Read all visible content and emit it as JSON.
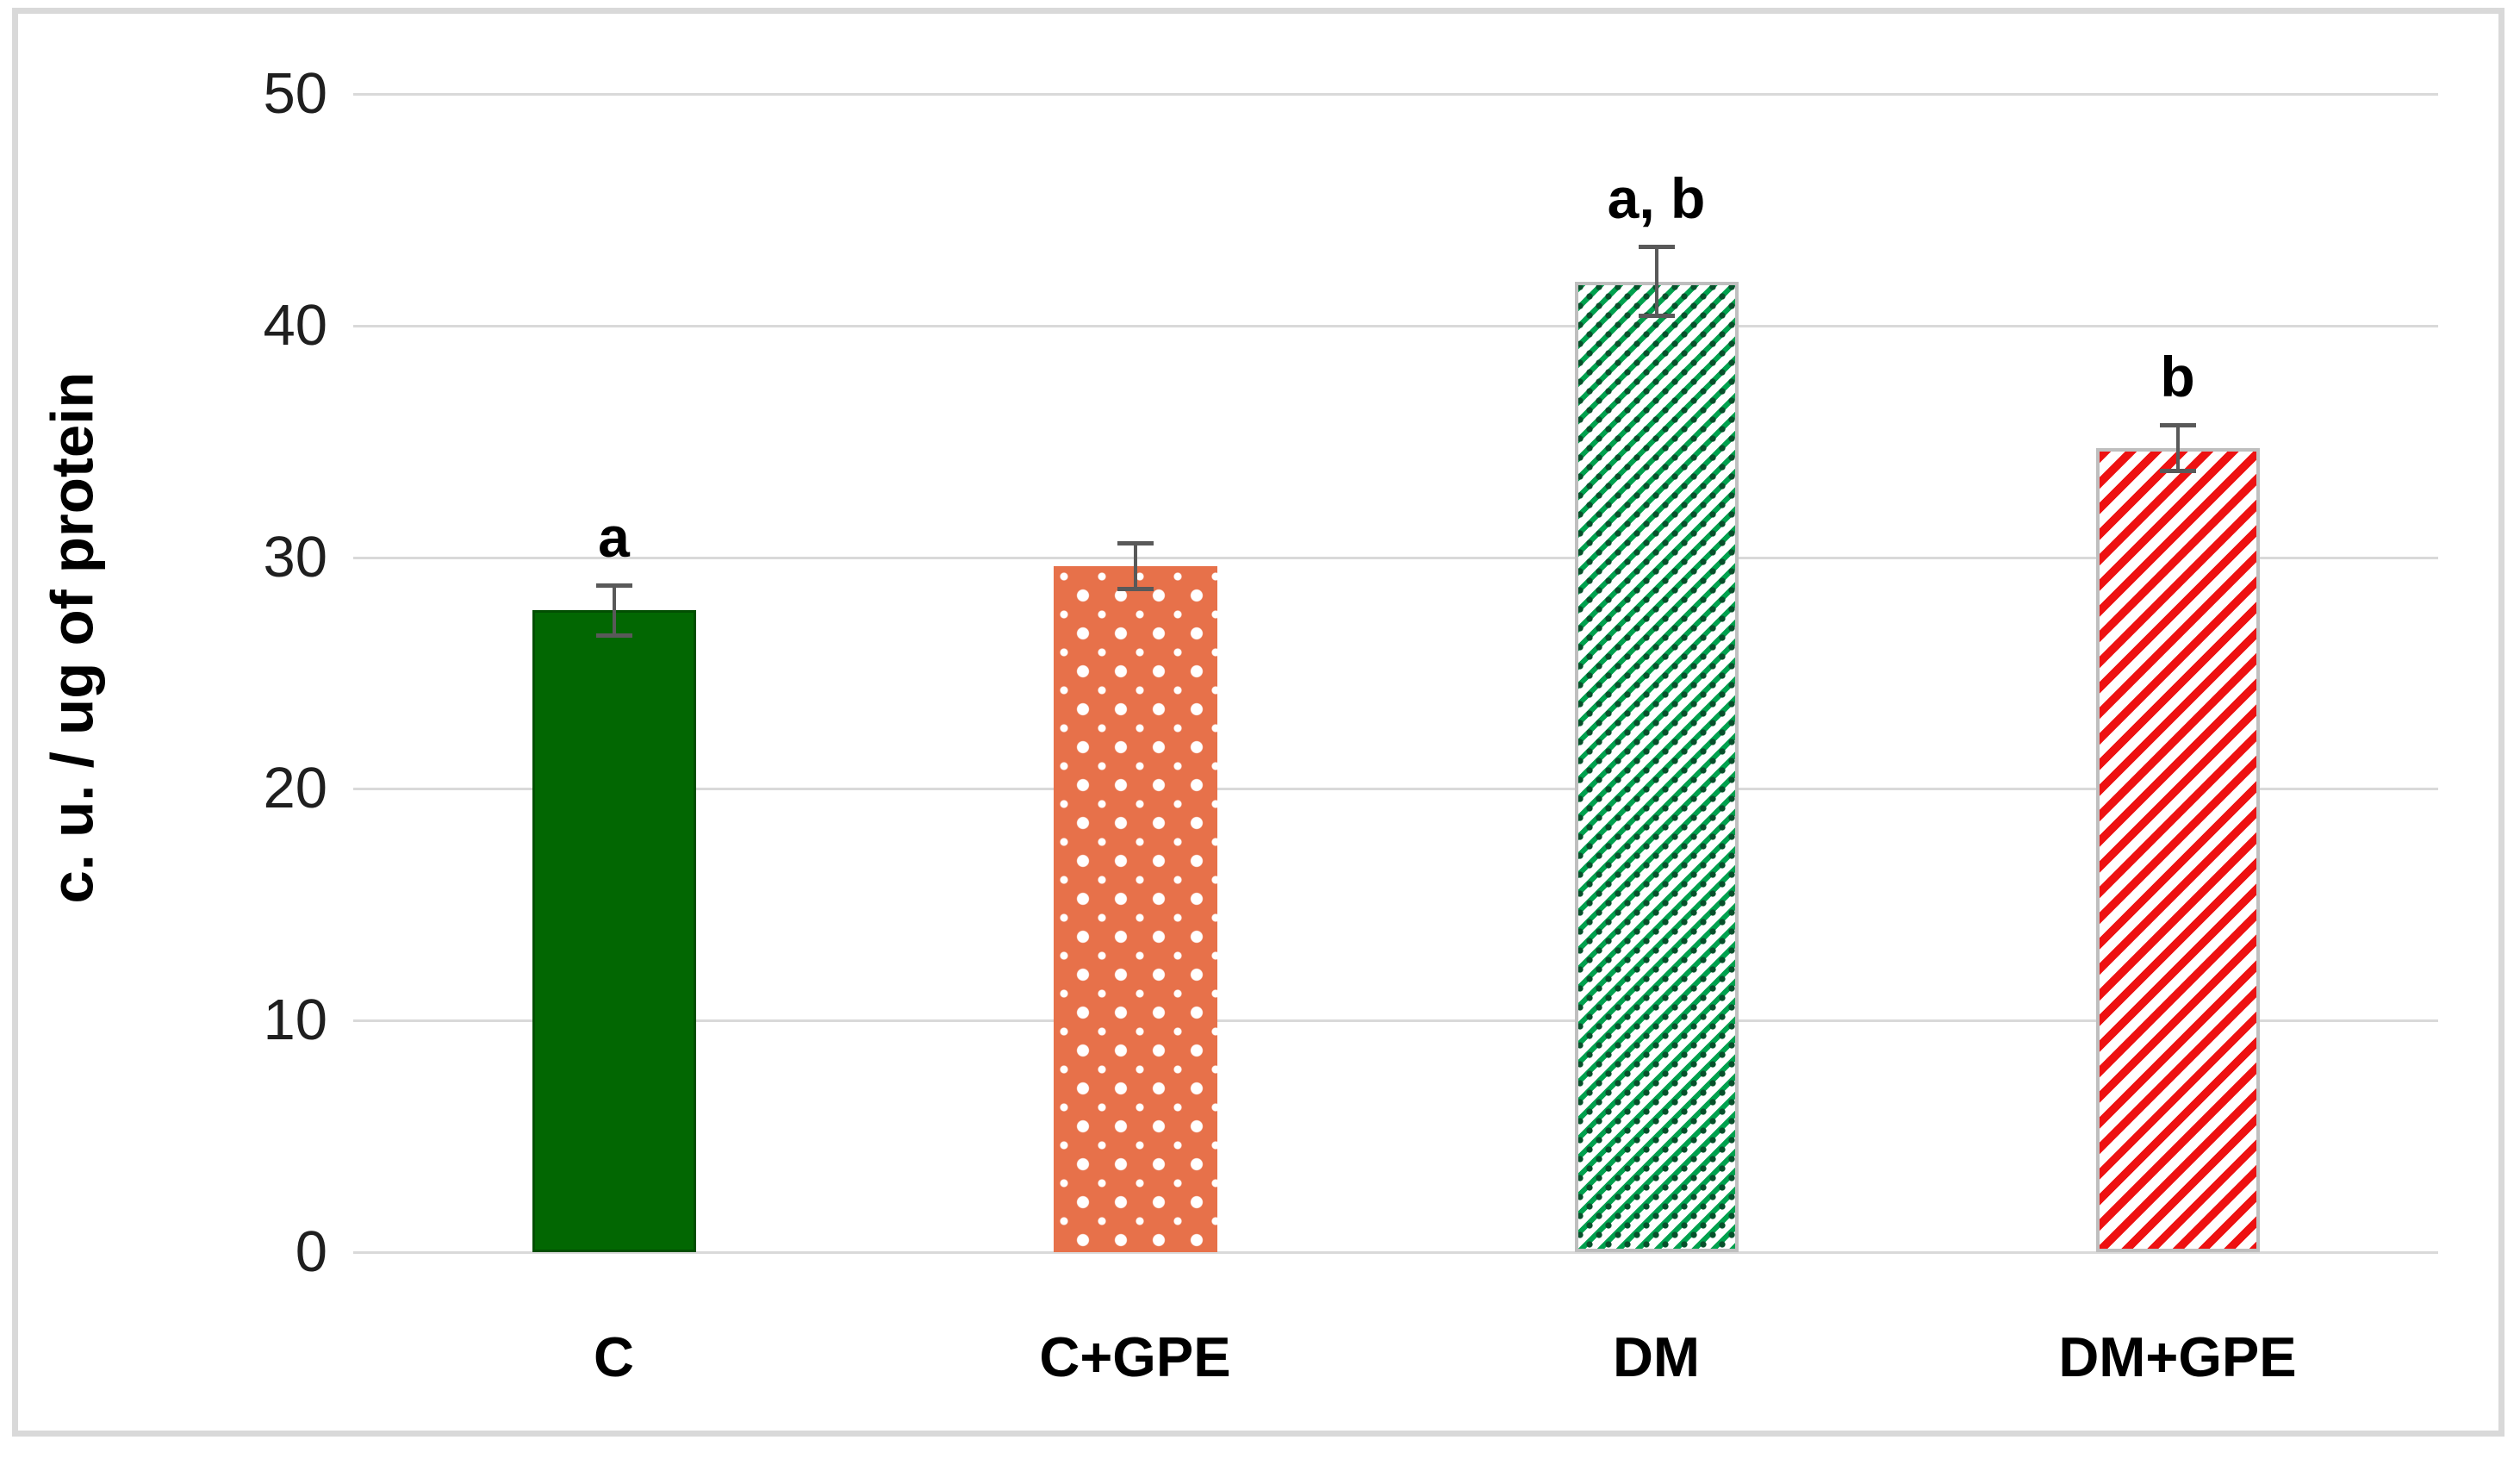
{
  "figure": {
    "background_color": "#ffffff",
    "frame_color": "#d9d9d9"
  },
  "chart_data": {
    "type": "bar",
    "title": "",
    "xlabel": "",
    "ylabel": "c. u. / ug of protein",
    "ylim": [
      0,
      50
    ],
    "yticks": [
      0,
      10,
      20,
      30,
      40,
      50
    ],
    "grid": true,
    "legend": "none",
    "categories": [
      "C",
      "C+GPE",
      "DM",
      "DM+GPE"
    ],
    "values": [
      27.7,
      29.6,
      41.9,
      34.7
    ],
    "errors": [
      1.1,
      1.0,
      1.5,
      1.0
    ],
    "annotations": [
      "a",
      "",
      "a, b",
      "b"
    ],
    "bar_styles": [
      {
        "pattern": "solid",
        "color": "#026702",
        "border_color": "#024f02"
      },
      {
        "pattern": "white-dots",
        "color": "#e7714a",
        "dot_color": "#ffffff"
      },
      {
        "pattern": "diagonal-hatch",
        "color": "#00a14e",
        "dot_color": "#07502b",
        "background": "#ffffff",
        "border_color": "#bfbfbf"
      },
      {
        "pattern": "diagonal-hatch",
        "color": "#ee1111",
        "background": "#ffffff",
        "border_color": "#bfbfbf"
      }
    ],
    "gridline_color": "#d9d9d9",
    "error_bar_color": "#595959",
    "tick_label_color": "#1f1f1f",
    "text_color": "#000000"
  }
}
